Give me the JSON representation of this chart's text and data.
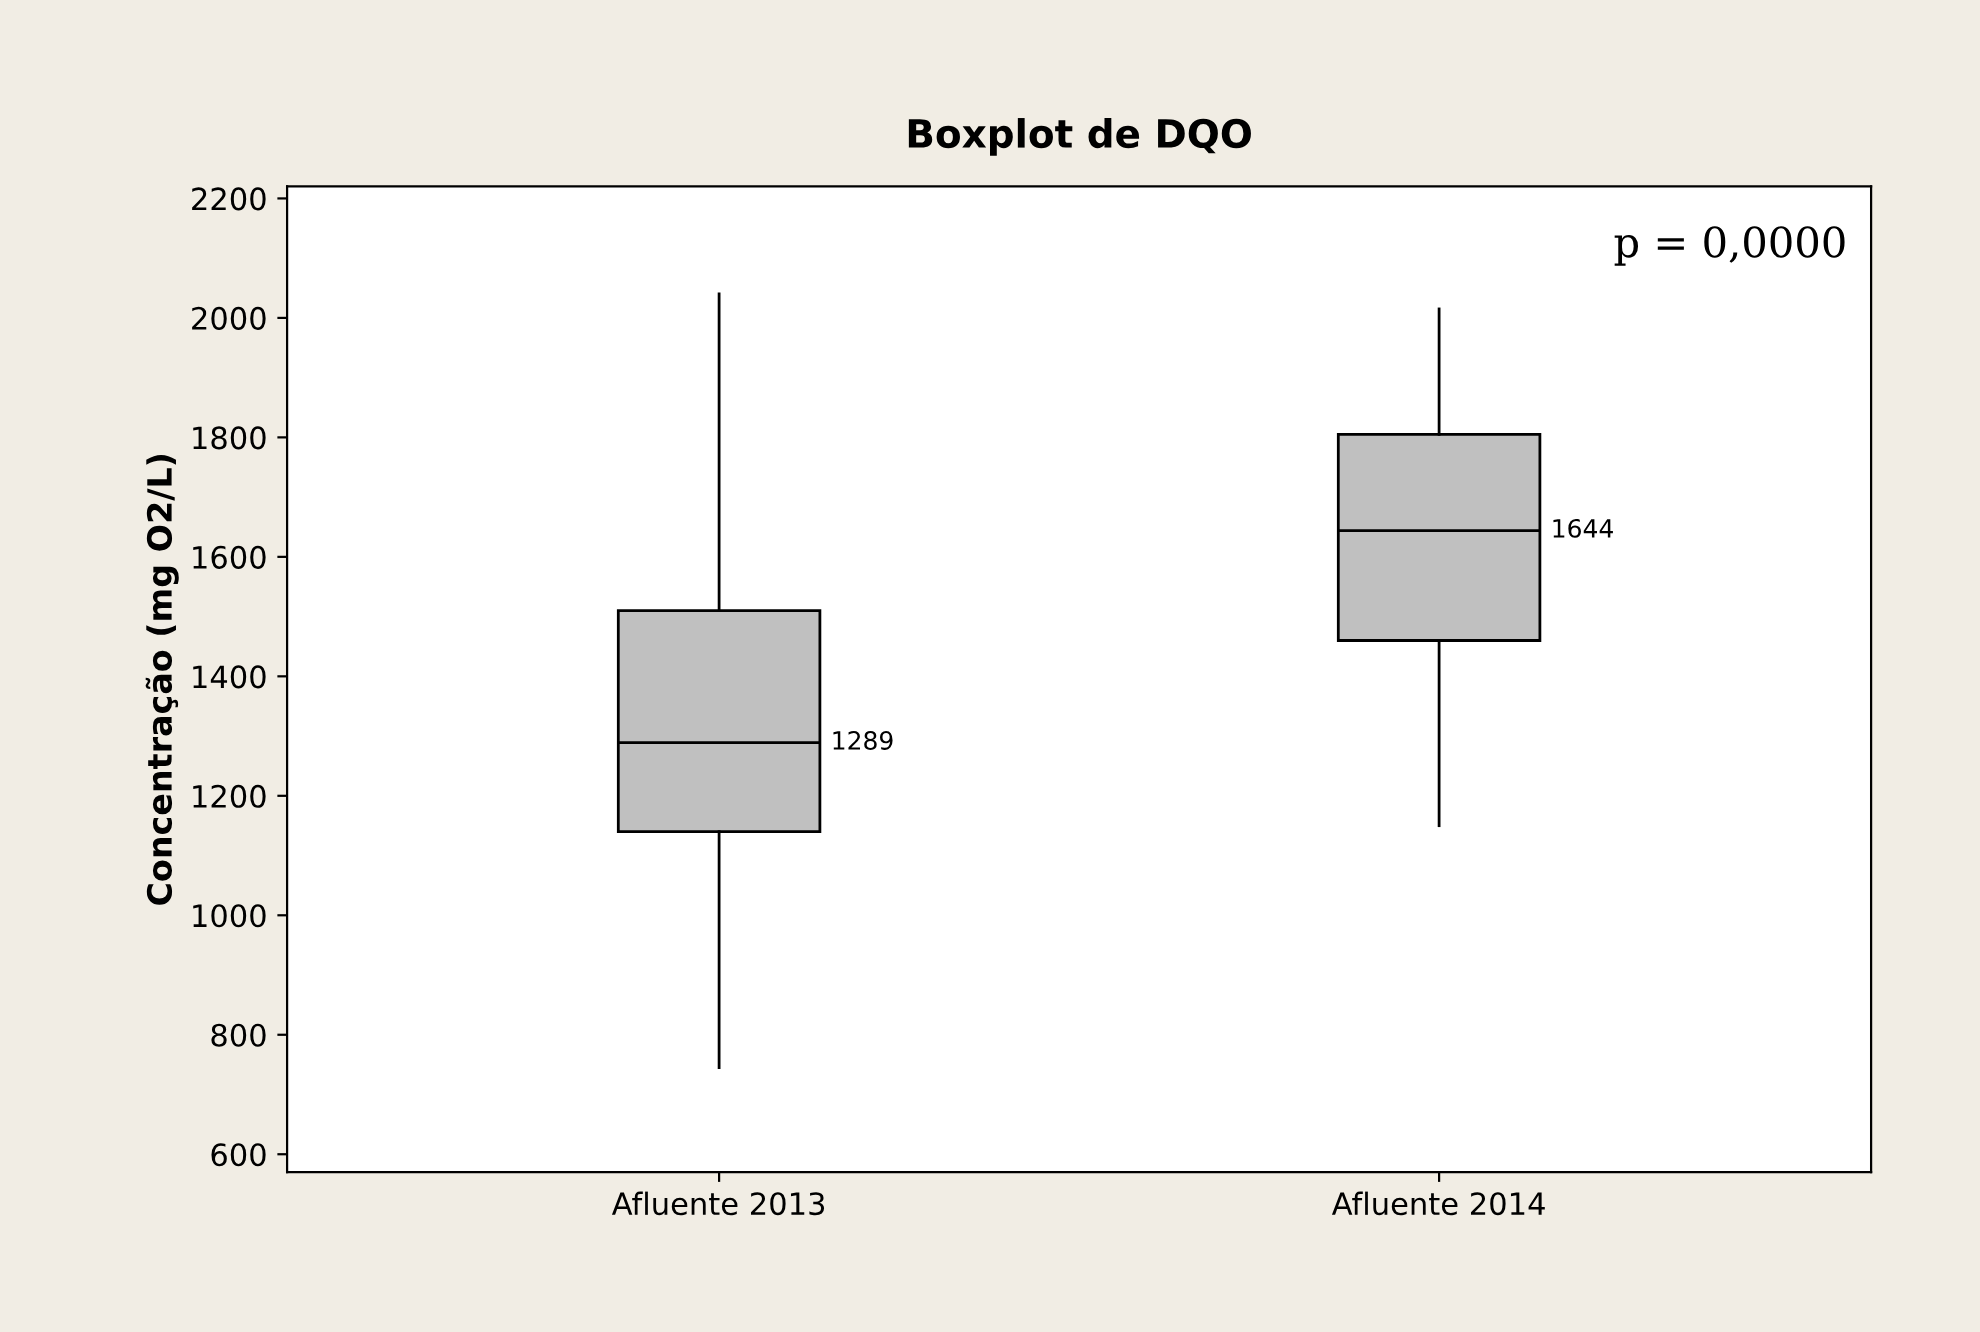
{
  "chart_data": {
    "type": "box",
    "title": "Boxplot de DQO",
    "ylabel": "Concentração (mg O2/L)",
    "categories": [
      "Afluente 2013",
      "Afluente 2014"
    ],
    "boxes": [
      {
        "low": 745,
        "q1": 1140,
        "median": 1289,
        "q3": 1510,
        "high": 2040
      },
      {
        "low": 1150,
        "q1": 1460,
        "median": 1644,
        "q3": 1805,
        "high": 2015
      }
    ],
    "color": "#c0c0c0",
    "ylim": [
      570,
      2220
    ],
    "yticks": [
      600,
      800,
      1000,
      1200,
      1400,
      1600,
      1800,
      2000,
      2200
    ],
    "grid": false,
    "annotations": [
      "p = 0,0000",
      "1289",
      "1644"
    ]
  }
}
